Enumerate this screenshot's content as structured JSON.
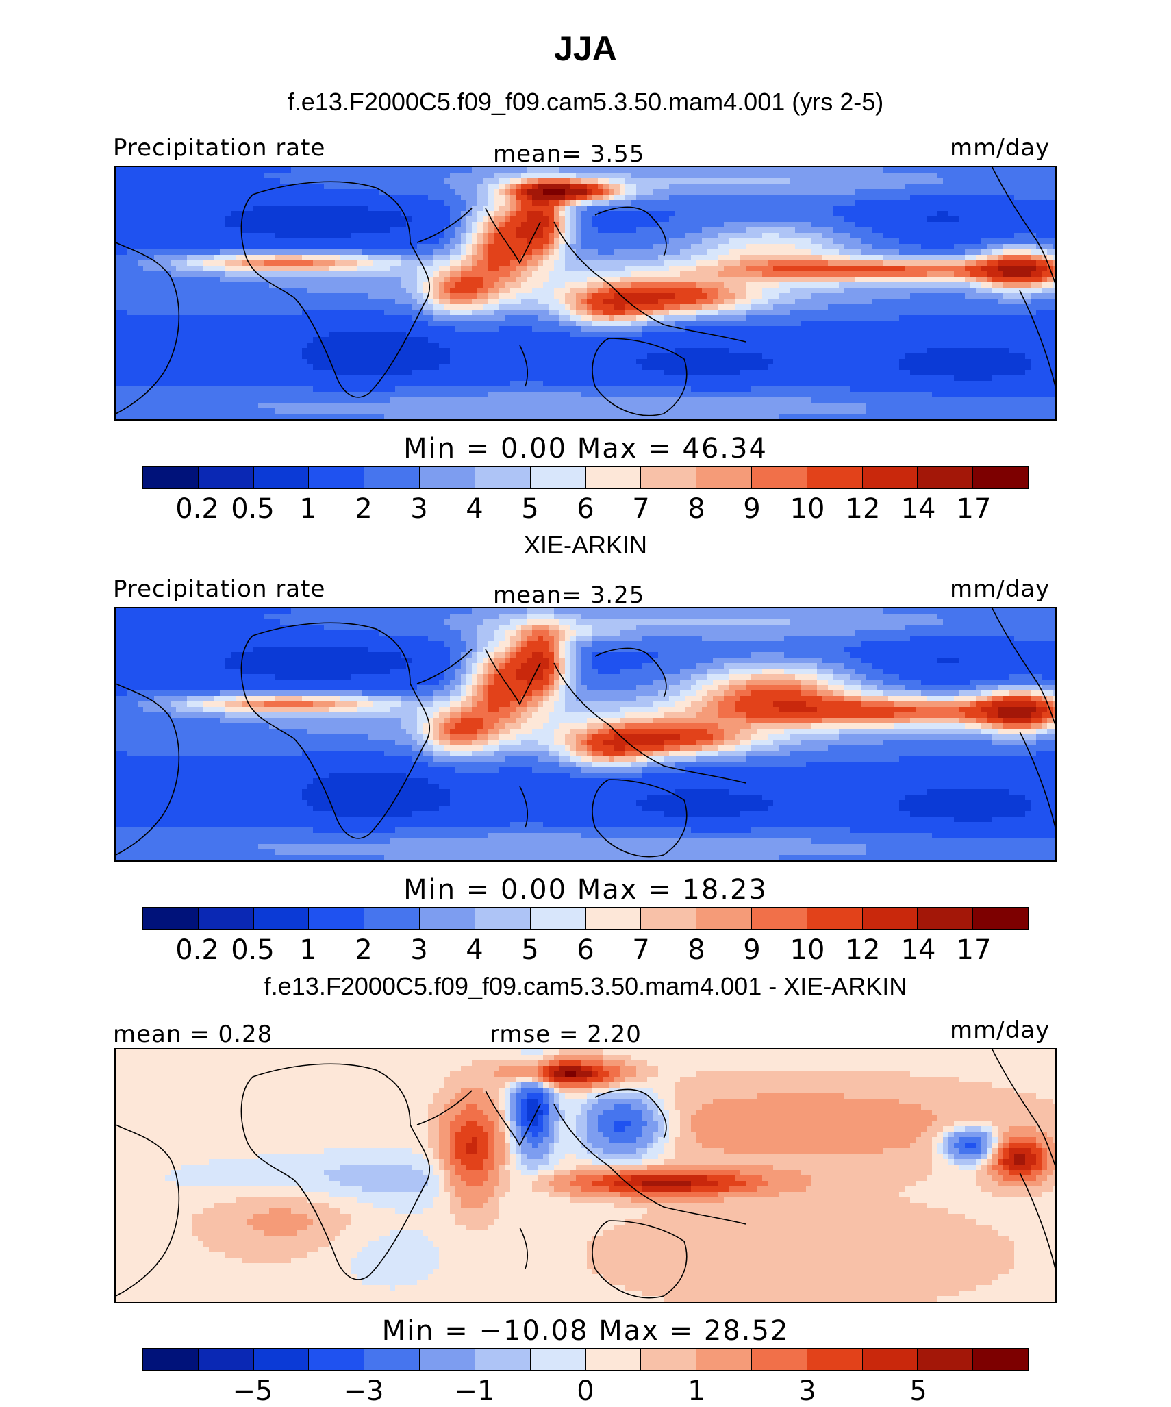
{
  "header": {
    "title": "JJA",
    "subtitle": "f.e13.F2000C5.f09_f09.cam5.3.50.mam4.001 (yrs 2-5)"
  },
  "chart_data": [
    {
      "type": "heatmap",
      "title": "",
      "left_label": "Precipitation rate",
      "center_label": "mean=    3.55",
      "right_label": "mm/day",
      "min_max": "Min  =    0.00  Max  =   46.34",
      "colorbar_ticks": [
        "0.2",
        "0.5",
        "1",
        "2",
        "3",
        "4",
        "5",
        "6",
        "7",
        "8",
        "9",
        "10",
        "12",
        "14",
        "17"
      ],
      "colors": [
        "#00127a",
        "#0a28b4",
        "#0b3ad6",
        "#1f52f0",
        "#4675ee",
        "#7d9df0",
        "#aec4f6",
        "#d8e6fb",
        "#fde7d8",
        "#f8c1a8",
        "#f59b78",
        "#f17049",
        "#e2421a",
        "#c9280c",
        "#a31708",
        "#7d0000"
      ],
      "mean": 3.55,
      "min": 0.0,
      "max": 46.34,
      "units": "mm/day"
    },
    {
      "type": "heatmap",
      "title": "XIE-ARKIN",
      "left_label": "Precipitation rate",
      "center_label": "mean=    3.25",
      "right_label": "mm/day",
      "min_max": "Min  =    0.00  Max  =   18.23",
      "colorbar_ticks": [
        "0.2",
        "0.5",
        "1",
        "2",
        "3",
        "4",
        "5",
        "6",
        "7",
        "8",
        "9",
        "10",
        "12",
        "14",
        "17"
      ],
      "colors": [
        "#00127a",
        "#0a28b4",
        "#0b3ad6",
        "#1f52f0",
        "#4675ee",
        "#7d9df0",
        "#aec4f6",
        "#d8e6fb",
        "#fde7d8",
        "#f8c1a8",
        "#f59b78",
        "#f17049",
        "#e2421a",
        "#c9280c",
        "#a31708",
        "#7d0000"
      ],
      "mean": 3.25,
      "min": 0.0,
      "max": 18.23,
      "units": "mm/day"
    },
    {
      "type": "heatmap",
      "title": "f.e13.F2000C5.f09_f09.cam5.3.50.mam4.001 - XIE-ARKIN",
      "left_label": "mean =    0.28",
      "center_label": "rmse =    2.20",
      "right_label": "mm/day",
      "min_max": "Min  = −10.08  Max  =   28.52",
      "colorbar_ticks": [
        "−5",
        "−3",
        "−1",
        "0",
        "1",
        "3",
        "5"
      ],
      "colors": [
        "#00127a",
        "#0a28b4",
        "#0b3ad6",
        "#1f52f0",
        "#4675ee",
        "#7d9df0",
        "#aec4f6",
        "#d8e6fb",
        "#fde7d8",
        "#f8c1a8",
        "#f59b78",
        "#f17049",
        "#e2421a",
        "#c9280c",
        "#a31708",
        "#7d0000"
      ],
      "mean": 0.28,
      "rmse": 2.2,
      "min": -10.08,
      "max": 28.52,
      "units": "mm/day"
    }
  ]
}
